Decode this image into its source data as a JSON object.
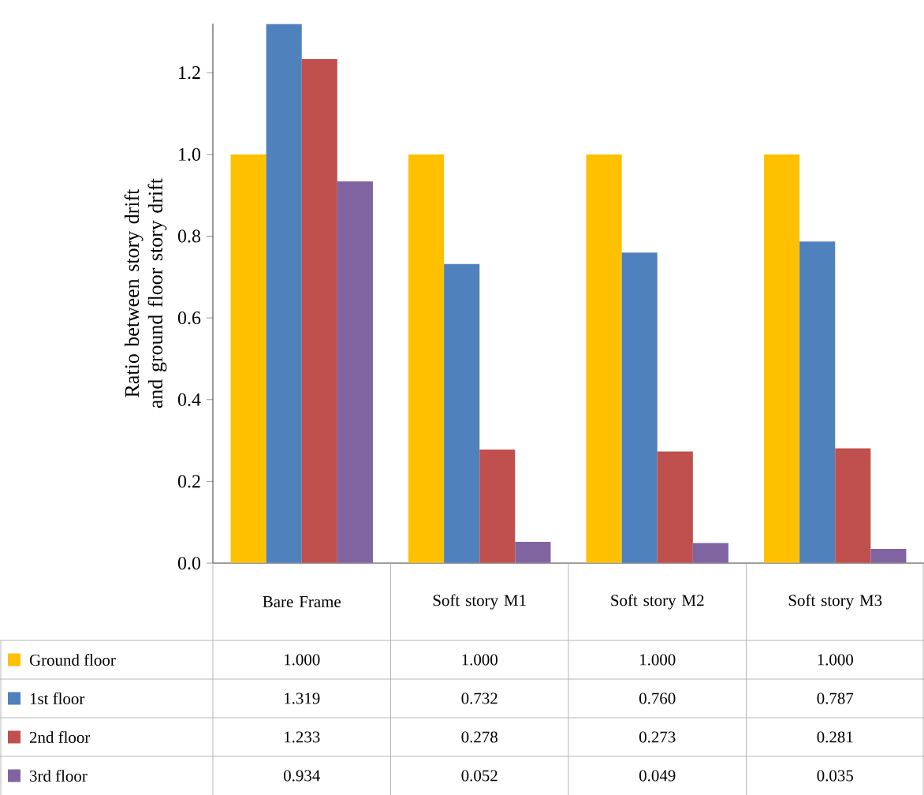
{
  "chart_data": {
    "type": "bar",
    "ylabel": "Ratio between story drift and ground floor story drift",
    "categories": [
      "Bare Frame",
      "Soft story M1",
      "Soft story M2",
      "Soft story M3"
    ],
    "series": [
      {
        "name": "Ground floor",
        "color": "#ffc000",
        "values": [
          1.0,
          1.0,
          1.0,
          1.0
        ],
        "value_labels": [
          "1.000",
          "1.000",
          "1.000",
          "1.000"
        ]
      },
      {
        "name": "1st floor",
        "color": "#4f81bd",
        "values": [
          1.319,
          0.732,
          0.76,
          0.787
        ],
        "value_labels": [
          "1.319",
          "0.732",
          "0.760",
          "0.787"
        ]
      },
      {
        "name": "2nd floor",
        "color": "#c0504d",
        "values": [
          1.233,
          0.278,
          0.273,
          0.281
        ],
        "value_labels": [
          "1.233",
          "0.278",
          "0.273",
          "0.281"
        ]
      },
      {
        "name": "3rd floor",
        "color": "#8064a2",
        "values": [
          0.934,
          0.052,
          0.049,
          0.035
        ],
        "value_labels": [
          "0.934",
          "0.052",
          "0.049",
          "0.035"
        ]
      }
    ],
    "ylim": [
      0,
      1.32
    ],
    "yticks": [
      {
        "value": 0,
        "label": "0.0"
      },
      {
        "value": 0.2,
        "label": "0.2"
      },
      {
        "value": 0.4,
        "label": "0.4"
      },
      {
        "value": 0.6,
        "label": "0.6"
      },
      {
        "value": 0.8,
        "label": "0.8"
      },
      {
        "value": 1.0,
        "label": "1.0"
      },
      {
        "value": 1.2,
        "label": "1.2"
      }
    ],
    "grid": false,
    "legend": "bottom left"
  }
}
